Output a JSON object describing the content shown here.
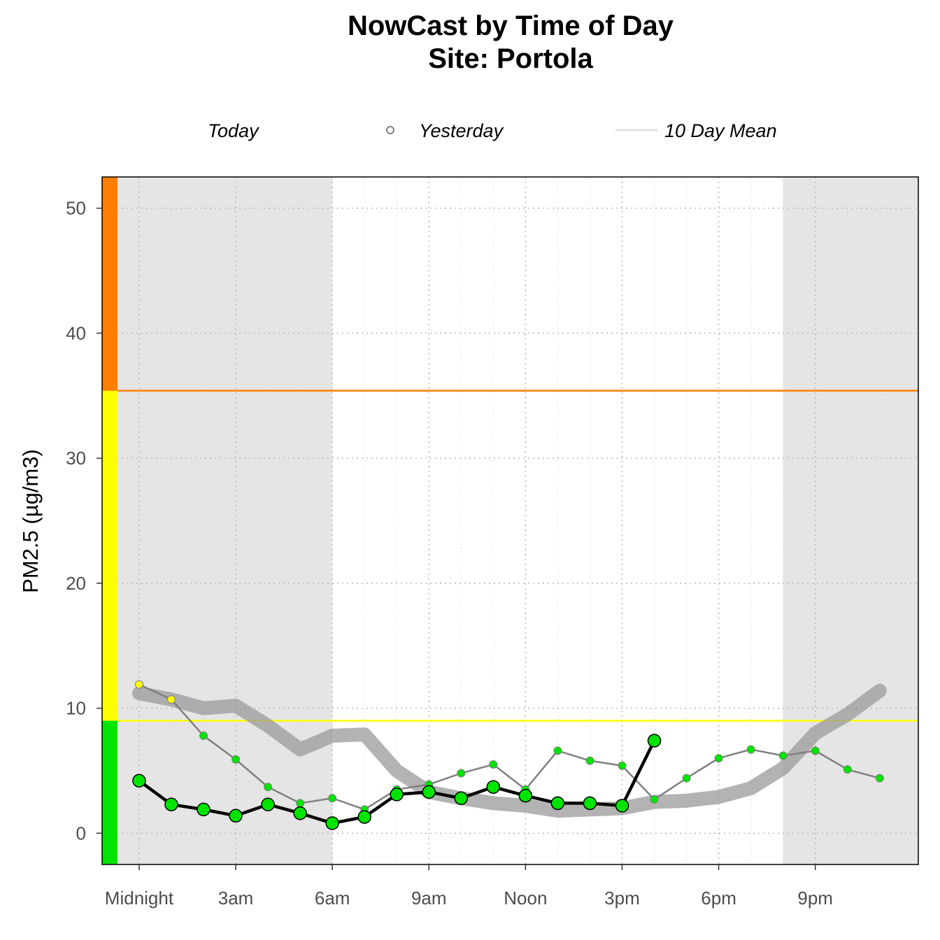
{
  "chart_data": {
    "type": "line",
    "title": "NowCast by Time of Day",
    "subtitle": "Site: Portola",
    "ylabel": "PM2.5 (µg/m3)",
    "xlabel": "",
    "ylim": [
      -2.5,
      52.5
    ],
    "xlim": [
      -1.15,
      24.2
    ],
    "yticks": [
      0,
      10,
      20,
      30,
      40,
      50
    ],
    "ytick_labels": [
      "0",
      "10",
      "20",
      "30",
      "40",
      "50"
    ],
    "xticks": [
      0,
      3,
      6,
      9,
      12,
      15,
      18,
      21
    ],
    "xtick_labels": [
      "Midnight",
      "3am",
      "6am",
      "9am",
      "Noon",
      "3pm",
      "6pm",
      "9pm"
    ],
    "grid": true,
    "legend_position": "top",
    "legend": [
      {
        "label": "Today",
        "symbol": "none"
      },
      {
        "label": "Yesterday",
        "symbol": "open-circle"
      },
      {
        "label": "10 Day Mean",
        "symbol": "line"
      }
    ],
    "night_shading": [
      [
        -1.15,
        6
      ],
      [
        20,
        24.2
      ]
    ],
    "aqi_bands": [
      {
        "min": -2.5,
        "max": 9,
        "color": "#00e400"
      },
      {
        "min": 9,
        "max": 35.4,
        "color": "#ffff00"
      },
      {
        "min": 35.4,
        "max": 52.5,
        "color": "#ff7e00"
      }
    ],
    "thresholds": [
      {
        "y": 9,
        "color": "#ffff00"
      },
      {
        "y": 35.4,
        "color": "#ff7e00"
      }
    ],
    "series": [
      {
        "name": "10 Day Mean",
        "color": "#999999",
        "x": [
          0,
          1,
          2,
          3,
          4,
          5,
          6,
          7,
          8,
          9,
          10,
          11,
          12,
          13,
          14,
          15,
          16,
          17,
          18,
          19,
          20,
          21,
          22,
          23
        ],
        "values": [
          11.2,
          10.7,
          10.0,
          10.2,
          8.6,
          6.7,
          7.8,
          7.9,
          5.0,
          3.3,
          2.8,
          2.4,
          2.2,
          1.8,
          1.9,
          2.0,
          2.5,
          2.6,
          2.9,
          3.6,
          5.2,
          8.0,
          9.5,
          11.4
        ]
      },
      {
        "name": "Yesterday",
        "color": "#808080",
        "x": [
          0,
          1,
          2,
          3,
          4,
          5,
          6,
          7,
          8,
          9,
          10,
          11,
          12,
          13,
          14,
          15,
          16,
          17,
          18,
          19,
          20,
          21,
          22,
          23
        ],
        "values": [
          11.9,
          10.7,
          7.8,
          5.9,
          3.7,
          2.4,
          2.8,
          1.9,
          3.5,
          3.9,
          4.8,
          5.5,
          3.5,
          6.6,
          5.8,
          5.4,
          2.7,
          4.4,
          6.0,
          6.7,
          6.2,
          6.6,
          5.1,
          4.4
        ],
        "point_colors": [
          "#ffff00",
          "#ffff00",
          "#00e400",
          "#00e400",
          "#00e400",
          "#00e400",
          "#00e400",
          "#00e400",
          "#00e400",
          "#00e400",
          "#00e400",
          "#00e400",
          "#00e400",
          "#00e400",
          "#00e400",
          "#00e400",
          "#00e400",
          "#00e400",
          "#00e400",
          "#00e400",
          "#00e400",
          "#00e400",
          "#00e400",
          "#00e400"
        ]
      },
      {
        "name": "Today",
        "color": "#000000",
        "x": [
          0,
          1,
          2,
          3,
          4,
          5,
          6,
          7,
          8,
          9,
          10,
          11,
          12,
          13,
          14,
          15,
          16
        ],
        "values": [
          4.2,
          2.3,
          1.9,
          1.4,
          2.3,
          1.6,
          0.8,
          1.3,
          3.1,
          3.3,
          2.8,
          3.7,
          3.0,
          2.4,
          2.4,
          2.2,
          7.4
        ],
        "point_colors": [
          "#00e400",
          "#00e400",
          "#00e400",
          "#00e400",
          "#00e400",
          "#00e400",
          "#00e400",
          "#00e400",
          "#00e400",
          "#00e400",
          "#00e400",
          "#00e400",
          "#00e400",
          "#00e400",
          "#00e400",
          "#00e400",
          "#00e400"
        ]
      }
    ]
  }
}
